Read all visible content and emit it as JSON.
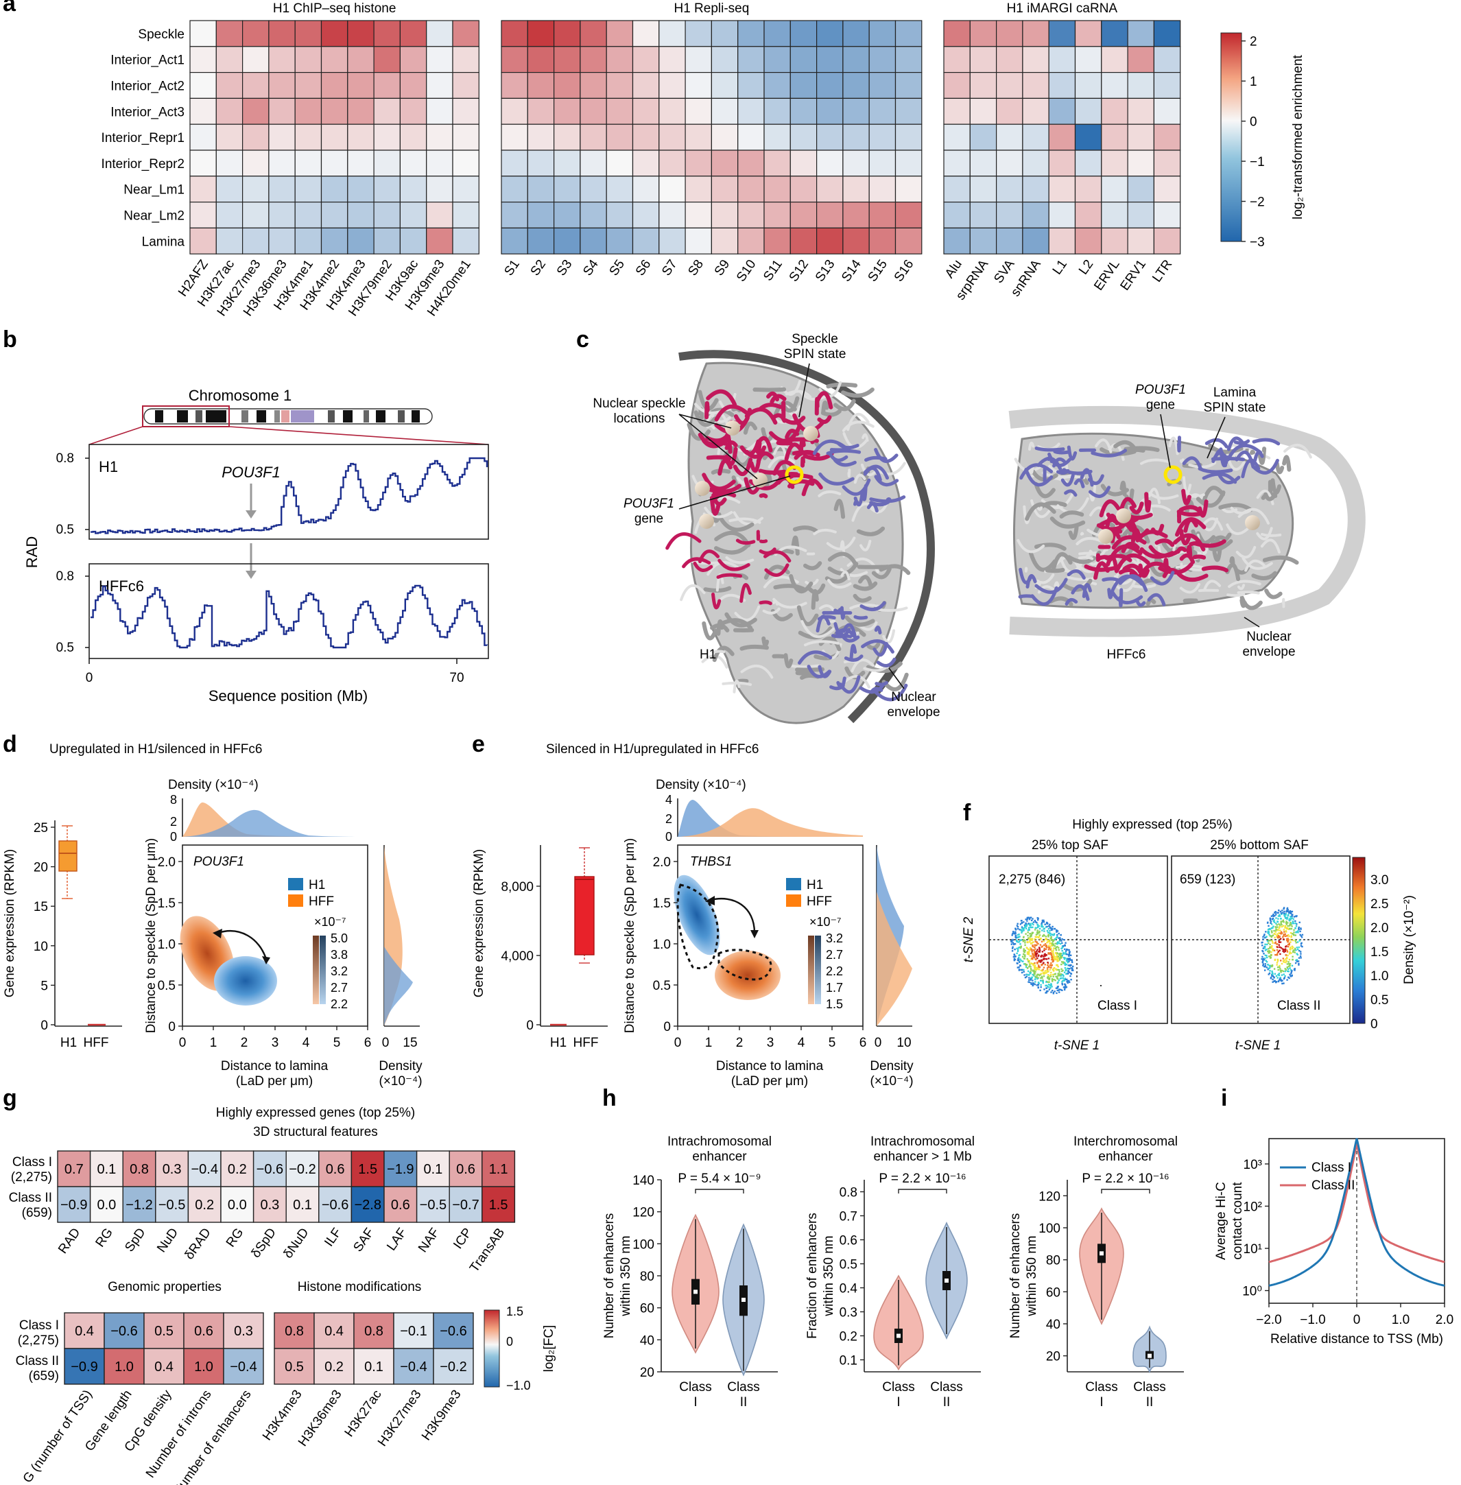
{
  "panel_a": {
    "label": "a",
    "rows": [
      "Speckle",
      "Interior_Act1",
      "Interior_Act2",
      "Interior_Act3",
      "Interior_Repr1",
      "Interior_Repr2",
      "Near_Lm1",
      "Near_Lm2",
      "Lamina"
    ],
    "heatmaps": [
      {
        "title": "H1 ChIP–seq histone",
        "cols": [
          "H2AFZ",
          "H3K27ac",
          "H3K27me3",
          "H3K36me3",
          "H3K4me1",
          "H3K4me2",
          "H3K4me3",
          "H3K79me2",
          "H3K9ac",
          "H3K9me3",
          "H4K20me1"
        ],
        "values": [
          [
            0.0,
            1.3,
            1.4,
            1.5,
            1.5,
            1.9,
            1.9,
            1.6,
            1.6,
            -0.3,
            1.2
          ],
          [
            0.1,
            0.4,
            0.1,
            0.5,
            0.6,
            0.7,
            0.8,
            1.4,
            0.8,
            -0.1,
            0.3
          ],
          [
            0.0,
            0.6,
            0.6,
            0.7,
            0.7,
            0.9,
            0.9,
            0.8,
            0.8,
            -0.1,
            0.4
          ],
          [
            0.1,
            0.6,
            1.1,
            0.6,
            0.9,
            0.9,
            0.9,
            0.4,
            0.6,
            -0.1,
            0.2
          ],
          [
            -0.1,
            0.3,
            0.5,
            0.2,
            0.3,
            0.3,
            0.3,
            0.2,
            0.3,
            0.1,
            0.1
          ],
          [
            0.0,
            -0.1,
            0.1,
            -0.1,
            -0.1,
            -0.1,
            -0.1,
            -0.2,
            -0.1,
            -0.1,
            0.0
          ],
          [
            0.3,
            -0.5,
            -0.4,
            -0.6,
            -0.6,
            -0.9,
            -0.9,
            -0.7,
            -0.5,
            -0.2,
            -0.3
          ],
          [
            0.2,
            -0.5,
            -0.4,
            -0.6,
            -0.7,
            -0.8,
            -0.9,
            -0.8,
            -0.6,
            0.3,
            -0.4
          ],
          [
            0.5,
            -0.6,
            -0.7,
            -0.7,
            -0.9,
            -1.3,
            -1.5,
            -1.0,
            -0.9,
            1.2,
            -0.6
          ]
        ]
      },
      {
        "title": "H1 Repli-seq",
        "cols": [
          "S1",
          "S2",
          "S3",
          "S4",
          "S5",
          "S6",
          "S7",
          "S8",
          "S9",
          "S10",
          "S11",
          "S12",
          "S13",
          "S14",
          "S15",
          "S16"
        ],
        "values": [
          [
            1.7,
            2.0,
            1.8,
            1.5,
            0.9,
            0.1,
            -0.3,
            -0.8,
            -1.0,
            -1.5,
            -1.7,
            -1.9,
            -2.1,
            -1.9,
            -1.6,
            -1.4
          ],
          [
            1.3,
            1.5,
            1.4,
            1.2,
            0.8,
            0.5,
            0.2,
            -0.2,
            -0.6,
            -1.1,
            -1.4,
            -1.6,
            -1.7,
            -1.6,
            -1.4,
            -1.2
          ],
          [
            0.8,
            1.0,
            1.1,
            0.9,
            0.7,
            0.4,
            0.2,
            -0.1,
            -0.4,
            -0.9,
            -1.3,
            -1.6,
            -1.7,
            -1.6,
            -1.4,
            -1.2
          ],
          [
            0.3,
            0.6,
            0.8,
            0.8,
            0.7,
            0.5,
            0.3,
            0.1,
            -0.2,
            -0.5,
            -0.9,
            -1.2,
            -1.4,
            -1.3,
            -1.1,
            -1.0
          ],
          [
            0.1,
            0.2,
            0.3,
            0.5,
            0.6,
            0.5,
            0.4,
            0.3,
            0.1,
            -0.1,
            -0.4,
            -0.6,
            -0.8,
            -0.8,
            -0.7,
            -0.6
          ],
          [
            -0.5,
            -0.5,
            -0.4,
            -0.2,
            0.0,
            0.2,
            0.4,
            0.6,
            0.8,
            0.8,
            0.5,
            0.2,
            -0.1,
            -0.2,
            -0.3,
            -0.3
          ],
          [
            -0.9,
            -1.0,
            -0.9,
            -0.7,
            -0.5,
            -0.2,
            0.0,
            0.3,
            0.5,
            0.7,
            0.7,
            0.6,
            0.4,
            0.3,
            0.2,
            0.1
          ],
          [
            -1.1,
            -1.3,
            -1.3,
            -1.1,
            -0.8,
            -0.5,
            -0.2,
            0.1,
            0.3,
            0.5,
            0.7,
            0.9,
            1.0,
            1.1,
            1.2,
            1.3
          ],
          [
            -1.5,
            -1.8,
            -1.9,
            -1.7,
            -1.4,
            -1.0,
            -0.6,
            -0.1,
            0.3,
            0.7,
            1.2,
            1.6,
            1.8,
            1.6,
            1.3,
            1.1
          ]
        ]
      },
      {
        "title": "H1 iMARGI caRNA",
        "cols": [
          "Alu",
          "srpRNA",
          "SVA",
          "snRNA",
          "L1",
          "L2",
          "ERVL",
          "ERV1",
          "LTR"
        ],
        "values": [
          [
            1.3,
            1.0,
            1.0,
            0.9,
            -2.4,
            0.7,
            -2.6,
            -1.3,
            -2.8
          ],
          [
            0.5,
            0.4,
            0.5,
            0.3,
            -0.5,
            -0.2,
            0.3,
            1.0,
            -0.7
          ],
          [
            0.6,
            0.4,
            0.4,
            0.4,
            -0.7,
            -0.4,
            -0.3,
            -0.4,
            -0.6
          ],
          [
            0.3,
            0.2,
            0.5,
            0.3,
            -1.3,
            -0.6,
            0.5,
            0.3,
            -0.2
          ],
          [
            -0.3,
            -0.9,
            -0.3,
            -0.5,
            0.9,
            -2.8,
            0.5,
            0.3,
            0.7
          ],
          [
            -0.3,
            -0.3,
            -0.2,
            -0.4,
            0.5,
            -0.5,
            0.3,
            0.1,
            0.4
          ],
          [
            -0.6,
            -0.4,
            -0.6,
            -0.7,
            0.3,
            0.4,
            -0.3,
            -0.8,
            0.2
          ],
          [
            -0.9,
            -0.8,
            -0.8,
            -1.2,
            -0.3,
            0.6,
            -0.4,
            -0.6,
            -0.2
          ],
          [
            -1.4,
            -1.2,
            -1.3,
            -1.7,
            0.4,
            0.9,
            0.5,
            0.3,
            0.6
          ]
        ]
      }
    ],
    "colorbar": {
      "label": "log₂-transformed enrichment",
      "ticks": [
        "2",
        "1",
        "0",
        "−1",
        "−2",
        "−3"
      ],
      "range": [
        -3,
        2.2
      ]
    }
  },
  "panel_b": {
    "label": "b",
    "chrom_title": "Chromosome 1",
    "gene_label": "POU3F1",
    "y_label": "RAD",
    "x_label": "Sequence position (Mb)",
    "x_ticks": [
      "0",
      "70"
    ],
    "tracks": [
      {
        "name": "H1",
        "y_ticks": [
          "0.8",
          "0.5"
        ]
      },
      {
        "name": "HFFc6",
        "y_ticks": [
          "0.8",
          "0.5"
        ]
      }
    ]
  },
  "panel_c": {
    "label": "c",
    "left": {
      "cell": "H1",
      "labels": [
        "Speckle",
        "SPIN state",
        "Nuclear speckle",
        "locations",
        "POU3F1",
        "gene",
        "Nuclear",
        "envelope"
      ]
    },
    "right": {
      "cell": "HFFc6",
      "labels": [
        "POU3F1",
        "gene",
        "Lamina",
        "SPIN state",
        "Nuclear",
        "envelope"
      ]
    },
    "colors": {
      "speckle": "#c2185b",
      "lamina": "#6b6bb8",
      "chromatin": "#b5b5b5",
      "gene": "#ffe600",
      "speckle_sphere": "#e3d2bd"
    }
  },
  "panel_d": {
    "label": "d",
    "title": "Upregulated in H1/silenced in HFFc6",
    "gene": "POU3F1",
    "box_ylabel": "Gene expression (RPKM)",
    "box_yticks": [
      "25",
      "20",
      "15",
      "10",
      "5",
      "0"
    ],
    "box_xticks": [
      "H1",
      "HFF"
    ],
    "density_title": "Density (×10⁻⁴)",
    "top_density_ticks": [
      "8",
      "2",
      "0"
    ],
    "y_ticks": [
      "2.0",
      "1.5",
      "1.0",
      "0.5",
      "0"
    ],
    "x_ticks": [
      "0",
      "1",
      "2",
      "3",
      "4",
      "5",
      "6"
    ],
    "ylabel": "Distance to speckle (SpD per μm)",
    "xlabel": [
      "Distance to lamina",
      "(LaD per μm)"
    ],
    "legend": [
      "H1",
      "HFF"
    ],
    "cbar_exp": "×10⁻⁷",
    "cbar_ticks": [
      "5.0",
      "3.8",
      "3.2",
      "2.7",
      "2.2"
    ],
    "side_density_ticks": [
      "0",
      "15"
    ],
    "side_density_label": [
      "Density",
      "(×10⁻⁴)"
    ]
  },
  "panel_e": {
    "label": "e",
    "title": "Silenced in H1/upregulated in HFFc6",
    "gene": "THBS1",
    "box_ylabel": "Gene expression (RPKM)",
    "box_yticks": [
      "8,000",
      "4,000",
      "0"
    ],
    "box_xticks": [
      "H1",
      "HFF"
    ],
    "density_title": "Density (×10⁻⁴)",
    "top_density_ticks": [
      "4",
      "2",
      "0"
    ],
    "y_ticks": [
      "2.0",
      "1.5",
      "1.0",
      "0.5",
      "0"
    ],
    "x_ticks": [
      "0",
      "1",
      "2",
      "3",
      "4",
      "5",
      "6"
    ],
    "ylabel": "Distance to speckle (SpD per μm)",
    "xlabel": [
      "Distance to lamina",
      "(LaD per μm)"
    ],
    "legend": [
      "H1",
      "HFF"
    ],
    "cbar_exp": "×10⁻⁷",
    "cbar_ticks": [
      "3.2",
      "2.7",
      "2.2",
      "1.7",
      "1.5"
    ],
    "side_density_ticks": [
      "0",
      "10"
    ],
    "side_density_label": [
      "Density",
      "(×10⁻⁴)"
    ]
  },
  "panel_f": {
    "label": "f",
    "title": "Highly expressed (top 25%)",
    "plots": [
      {
        "title": "25% top SAF",
        "count": "2,275 (846)",
        "class": "Class I"
      },
      {
        "title": "25% bottom SAF",
        "count": "659 (123)",
        "class": "Class II"
      }
    ],
    "xlabel": "t-SNE 1",
    "ylabel": "t-SNE 2",
    "cbar_ticks": [
      "3.0",
      "2.5",
      "2.0",
      "1.5",
      "1.0",
      "0.5",
      "0"
    ],
    "cbar_label": "Density (×10⁻²)"
  },
  "panel_g": {
    "label": "g",
    "title": "Highly expressed genes (top 25%)",
    "subtitle": "3D structural features",
    "row_labels": [
      "Class I",
      "(2,275)",
      "Class II",
      "(659)"
    ],
    "structural": {
      "cols": [
        "RAD",
        "RG",
        "SpD",
        "NuD",
        "δRAD",
        "RG",
        "δSpD",
        "δNuD",
        "ILF",
        "SAF",
        "LAF",
        "NAF",
        "ICP",
        "TransAB"
      ],
      "values": [
        [
          "0.7",
          "0.1",
          "0.8",
          "0.3",
          "−0.4",
          "0.2",
          "−0.6",
          "−0.2",
          "0.6",
          "1.5",
          "−1.9",
          "0.1",
          "0.6",
          "1.1"
        ],
        [
          "−0.9",
          "0.0",
          "−1.2",
          "−0.5",
          "0.2",
          "0.0",
          "0.3",
          "0.1",
          "−0.6",
          "−2.8",
          "0.6",
          "−0.5",
          "−0.7",
          "1.5"
        ]
      ]
    },
    "genomic": {
      "title": "Genomic properties",
      "cols": [
        "G (number of TSS)",
        "Gene length",
        "CpG density",
        "Number of introns",
        "Number of enhancers"
      ],
      "values": [
        [
          "0.4",
          "−0.6",
          "0.5",
          "0.6",
          "0.3"
        ],
        [
          "−0.9",
          "1.0",
          "0.4",
          "1.0",
          "−0.4"
        ]
      ]
    },
    "histone": {
      "title": "Histone modifications",
      "cols": [
        "H3K4me3",
        "H3K36me3",
        "H3K27ac",
        "H3K27me3",
        "H3K9me3"
      ],
      "values": [
        [
          "0.8",
          "0.4",
          "0.8",
          "−0.1",
          "−0.6"
        ],
        [
          "0.5",
          "0.2",
          "0.1",
          "−0.4",
          "−0.2"
        ]
      ]
    },
    "cbar_ticks": [
      "1.5",
      "0",
      "−1.0"
    ],
    "cbar_label": "log₂[FC]"
  },
  "panel_h": {
    "label": "h",
    "plots": [
      {
        "title": [
          "Intrachromosomal",
          "enhancer"
        ],
        "p": "P = 5.4 × 10⁻⁹",
        "ylabel": [
          "Number of enhancers",
          "within 350 nm"
        ],
        "yticks": [
          "140",
          "120",
          "100",
          "80",
          "60",
          "40",
          "20"
        ],
        "classes": [
          "Class",
          "I",
          "Class",
          "II"
        ]
      },
      {
        "title": [
          "Intrachromosomal",
          "enhancer > 1 Mb"
        ],
        "p": "P = 2.2 × 10⁻¹⁶",
        "ylabel": [
          "Fraction of enhancers",
          "within 350 nm"
        ],
        "yticks": [
          "0.8",
          "0.7",
          "0.6",
          "0.5",
          "0.4",
          "0.3",
          "0.2",
          "0.1"
        ],
        "classes": [
          "Class",
          "I",
          "Class",
          "II"
        ]
      },
      {
        "title": [
          "Interchromosomal",
          "enhancer"
        ],
        "p": "P = 2.2 × 10⁻¹⁶",
        "ylabel": [
          "Number of enhancers",
          "within 350 nm"
        ],
        "yticks": [
          "120",
          "100",
          "80",
          "60",
          "40",
          "20"
        ],
        "classes": [
          "Class",
          "I",
          "Class",
          "II"
        ]
      }
    ]
  },
  "panel_i": {
    "label": "i",
    "legend": [
      "Class I",
      "Class II"
    ],
    "ylabel": [
      "Average Hi-C",
      "contact count"
    ],
    "yticks": [
      "10³",
      "10²",
      "10¹",
      "10⁰"
    ],
    "xticks": [
      "−2.0",
      "−1.0",
      "0",
      "1.0",
      "2.0"
    ],
    "xlabel": "Relative distance to TSS (Mb)",
    "colors": {
      "class1": "#1f77b4",
      "class2": "#d9676b"
    }
  }
}
